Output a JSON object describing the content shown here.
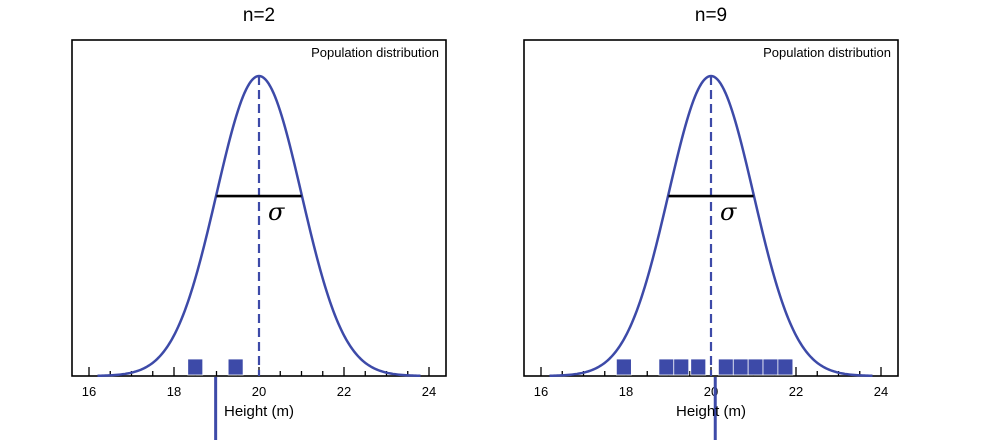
{
  "colors": {
    "curve": "#3d4aa8",
    "marks": "#3d4aa8",
    "frame": "#000000"
  },
  "chart_data": [
    {
      "type": "area",
      "title": "n=2",
      "population_label": "Population distribution",
      "xlabel": "Height (m)",
      "ylabel": "",
      "xlim": [
        15.6,
        24.4
      ],
      "xticks": [
        16,
        18,
        20,
        22,
        24
      ],
      "population": {
        "mean": 20,
        "sd": 1
      },
      "sigma_label": "σ",
      "sample_values": [
        18.5,
        19.45
      ],
      "sample_mean": 18.98,
      "grid": false
    },
    {
      "type": "area",
      "title": "n=9",
      "population_label": "Population distribution",
      "xlabel": "Height (m)",
      "ylabel": "",
      "xlim": [
        15.6,
        24.4
      ],
      "xticks": [
        16,
        18,
        20,
        22,
        24
      ],
      "population": {
        "mean": 20,
        "sd": 1
      },
      "sigma_label": "σ",
      "sample_values": [
        17.95,
        18.95,
        19.3,
        19.7,
        20.35,
        20.7,
        21.05,
        21.4,
        21.75
      ],
      "sample_mean": 20.1,
      "grid": false
    }
  ]
}
